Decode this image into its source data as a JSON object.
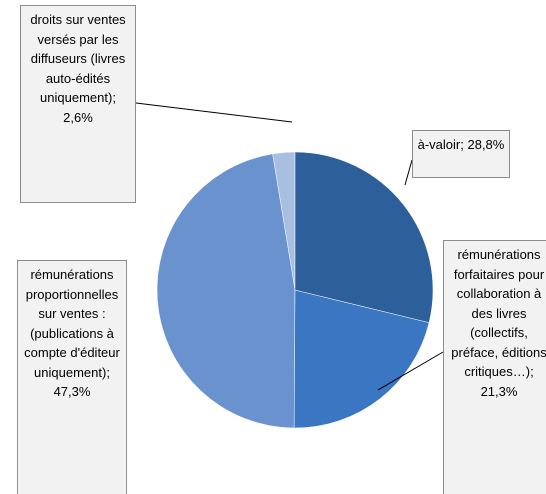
{
  "chart_data": {
    "type": "pie",
    "categories": [
      "à-valoir",
      "rémunérations forfaitaires pour collaboration à des livres (collectifs, préface, éditions critiques…)",
      "rémunérations proportionnelles sur ventes : (publications à compte d'éditeur uniquement)",
      "droits sur ventes versés par les diffuseurs (livres auto-édités uniquement)"
    ],
    "values": [
      28.8,
      21.3,
      47.3,
      2.6
    ],
    "value_labels": [
      "28,8%",
      "21,3%",
      "47,3%",
      "2,6%"
    ],
    "label_separator": "; ",
    "colors": [
      "#2d5f9a",
      "#3b76c2",
      "#6992cf",
      "#a9bfe2"
    ]
  }
}
